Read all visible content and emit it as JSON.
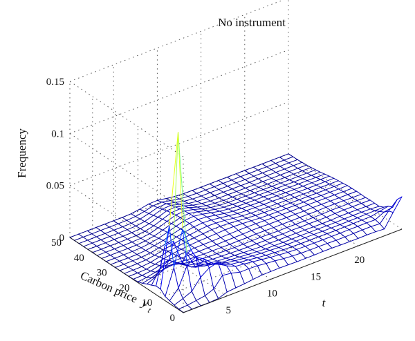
{
  "chart_data": {
    "type": "surface",
    "title": "No instrument",
    "zlabel": "Frequency",
    "ylabel": "Carbon price",
    "ylabel_var": "y",
    "ylabel_sub": "t",
    "xlabel": "t",
    "x_ticks": [
      "5",
      "10",
      "15",
      "20"
    ],
    "y_ticks": [
      "0",
      "10",
      "20",
      "30",
      "40",
      "50"
    ],
    "z_ticks": [
      "0",
      "0.05",
      "0.1",
      "0.15"
    ],
    "xlim": [
      0,
      25
    ],
    "ylim": [
      0,
      50
    ],
    "zlim": [
      0,
      0.15
    ],
    "grid": true,
    "colormap": "jet",
    "colormap_stops": [
      "#00008f",
      "#0000ff",
      "#00ffff",
      "#ffff00",
      "#ff0000"
    ],
    "x": [
      0,
      1,
      2,
      3,
      4,
      5,
      6,
      7,
      8,
      9,
      10,
      11,
      12,
      13,
      14,
      15,
      16,
      17,
      18,
      19,
      20,
      21,
      22,
      23,
      24,
      25
    ],
    "y": [
      0,
      2,
      4,
      6,
      8,
      10,
      12,
      14,
      16,
      18,
      20,
      22,
      24,
      26,
      28,
      30,
      32,
      34,
      36,
      38,
      40,
      42,
      44,
      46,
      48,
      50
    ],
    "z": [
      [
        0.0001,
        0.0002,
        0.0003,
        0.0002,
        0.0008,
        0.0038,
        0.0046,
        0.0053,
        0.0064,
        0.0073,
        0.0075,
        0.0076,
        0.0075,
        0.0072,
        0.0073,
        0.0073,
        0.0076,
        0.0075,
        0.0073,
        0.0072,
        0.0072,
        0.0073,
        0.0072,
        0.0066,
        0.0194,
        0.0312
      ],
      [
        0.0006,
        0.0011,
        0.0024,
        0.0038,
        0.0071,
        0.0169,
        0.0158,
        0.0136,
        0.0137,
        0.0133,
        0.0124,
        0.0116,
        0.0106,
        0.0099,
        0.0095,
        0.0092,
        0.0093,
        0.0091,
        0.009,
        0.0089,
        0.0091,
        0.0092,
        0.0093,
        0.0087,
        0.0177,
        0.0257
      ],
      [
        0.0015,
        0.0046,
        0.0083,
        0.0185,
        0.0244,
        0.0266,
        0.02,
        0.0163,
        0.0154,
        0.0143,
        0.0132,
        0.0121,
        0.0113,
        0.0105,
        0.0101,
        0.0099,
        0.0098,
        0.0097,
        0.0097,
        0.0097,
        0.0098,
        0.0098,
        0.0099,
        0.0097,
        0.0139,
        0.0154
      ],
      [
        0.0029,
        0.0118,
        0.0305,
        0.0354,
        0.0299,
        0.0224,
        0.0181,
        0.0154,
        0.0142,
        0.0132,
        0.012,
        0.0112,
        0.0105,
        0.0101,
        0.0098,
        0.0096,
        0.0097,
        0.0096,
        0.0095,
        0.0094,
        0.0096,
        0.0097,
        0.0098,
        0.0098,
        0.0116,
        0.0134
      ],
      [
        0.004,
        0.0285,
        0.0624,
        0.0385,
        0.0227,
        0.0187,
        0.0159,
        0.0139,
        0.0128,
        0.0117,
        0.0109,
        0.0103,
        0.0099,
        0.0094,
        0.0092,
        0.0091,
        0.0092,
        0.009,
        0.0089,
        0.0088,
        0.0089,
        0.009,
        0.009,
        0.0093,
        0.0094,
        0.0096
      ],
      [
        0.0082,
        0.0658,
        0.1527,
        0.0331,
        0.0164,
        0.0144,
        0.0128,
        0.0115,
        0.0108,
        0.0102,
        0.0095,
        0.0088,
        0.0083,
        0.0083,
        0.0082,
        0.0081,
        0.0083,
        0.0081,
        0.0082,
        0.008,
        0.0081,
        0.0083,
        0.0084,
        0.0083,
        0.0082,
        0.0075
      ],
      [
        0.0083,
        0.0435,
        0.0452,
        0.0208,
        0.0138,
        0.0121,
        0.0108,
        0.0098,
        0.0094,
        0.0089,
        0.0083,
        0.0079,
        0.0076,
        0.0078,
        0.0076,
        0.0075,
        0.0077,
        0.0075,
        0.0074,
        0.0073,
        0.0074,
        0.0078,
        0.0079,
        0.0077,
        0.0076,
        0.0076
      ],
      [
        0.0062,
        0.0195,
        0.0239,
        0.0172,
        0.0123,
        0.0105,
        0.0094,
        0.0087,
        0.0085,
        0.0081,
        0.0076,
        0.0075,
        0.0075,
        0.0074,
        0.0075,
        0.0073,
        0.0075,
        0.0074,
        0.0075,
        0.0074,
        0.0073,
        0.0077,
        0.0079,
        0.0078,
        0.0078,
        0.0077
      ],
      [
        0.0044,
        0.0083,
        0.0125,
        0.0134,
        0.0111,
        0.0095,
        0.0087,
        0.0081,
        0.0079,
        0.0076,
        0.0074,
        0.0074,
        0.0075,
        0.0076,
        0.0075,
        0.0072,
        0.0074,
        0.0072,
        0.0073,
        0.0073,
        0.0073,
        0.0077,
        0.0076,
        0.0076,
        0.0074,
        0.0073
      ],
      [
        0.0022,
        0.0041,
        0.0072,
        0.0096,
        0.0092,
        0.0085,
        0.0081,
        0.0078,
        0.0078,
        0.0076,
        0.0076,
        0.0077,
        0.0077,
        0.0079,
        0.0078,
        0.0076,
        0.0077,
        0.0076,
        0.0077,
        0.0076,
        0.0077,
        0.0079,
        0.0079,
        0.0077,
        0.0075,
        0.0075
      ],
      [
        0.0007,
        0.0018,
        0.0036,
        0.0062,
        0.0074,
        0.0076,
        0.0077,
        0.0077,
        0.0077,
        0.0077,
        0.0079,
        0.008,
        0.0081,
        0.0084,
        0.0084,
        0.0081,
        0.008,
        0.008,
        0.0079,
        0.0078,
        0.0079,
        0.0078,
        0.0077,
        0.0076,
        0.0075,
        0.0075
      ],
      [
        0.0004,
        0.0008,
        0.0018,
        0.0039,
        0.0058,
        0.0069,
        0.0074,
        0.0079,
        0.0081,
        0.0081,
        0.0083,
        0.0086,
        0.0088,
        0.0089,
        0.0087,
        0.0085,
        0.0082,
        0.008,
        0.0079,
        0.0078,
        0.0079,
        0.0077,
        0.0077,
        0.0075,
        0.0074,
        0.0074
      ],
      [
        0.0002,
        0.0003,
        0.0007,
        0.0022,
        0.0043,
        0.006,
        0.007,
        0.0079,
        0.0085,
        0.0088,
        0.0092,
        0.0096,
        0.0096,
        0.0092,
        0.0087,
        0.0081,
        0.0078,
        0.0077,
        0.0076,
        0.0074,
        0.0074,
        0.0073,
        0.0073,
        0.0072,
        0.0071,
        0.0072
      ],
      [
        0.0001,
        0.0001,
        0.0003,
        0.0011,
        0.0031,
        0.0051,
        0.0065,
        0.0077,
        0.0086,
        0.0094,
        0.0101,
        0.0102,
        0.0098,
        0.009,
        0.0082,
        0.0077,
        0.0073,
        0.0072,
        0.007,
        0.0068,
        0.0067,
        0.0067,
        0.0066,
        0.0066,
        0.0066,
        0.0066
      ],
      [
        0.0,
        0.0001,
        0.0002,
        0.0006,
        0.0019,
        0.0038,
        0.0055,
        0.0073,
        0.0086,
        0.0098,
        0.0106,
        0.0104,
        0.0097,
        0.0085,
        0.0076,
        0.0071,
        0.0068,
        0.0066,
        0.0064,
        0.0063,
        0.0062,
        0.0061,
        0.006,
        0.0061,
        0.0061,
        0.0061
      ],
      [
        0.0,
        0.0,
        0.0001,
        0.0003,
        0.0012,
        0.0028,
        0.0047,
        0.0069,
        0.0086,
        0.0102,
        0.0109,
        0.0104,
        0.0093,
        0.0081,
        0.007,
        0.0066,
        0.0063,
        0.0061,
        0.006,
        0.0058,
        0.0057,
        0.0055,
        0.0054,
        0.0054,
        0.0055,
        0.0055
      ],
      [
        0.0,
        0.0,
        0.0,
        0.0001,
        0.0007,
        0.0021,
        0.0039,
        0.0064,
        0.0086,
        0.0106,
        0.0113,
        0.0104,
        0.0089,
        0.0074,
        0.0063,
        0.0058,
        0.0055,
        0.0053,
        0.0052,
        0.0051,
        0.0049,
        0.0048,
        0.0047,
        0.0047,
        0.0047,
        0.0047
      ],
      [
        0.0,
        0.0,
        0.0,
        0.0001,
        0.0004,
        0.0014,
        0.0031,
        0.0057,
        0.0083,
        0.0107,
        0.0114,
        0.0102,
        0.0083,
        0.0066,
        0.0055,
        0.0049,
        0.0046,
        0.0045,
        0.0044,
        0.0042,
        0.0041,
        0.004,
        0.0039,
        0.0039,
        0.0038,
        0.0038
      ],
      [
        0.0,
        0.0,
        0.0,
        0.0,
        0.0002,
        0.0009,
        0.0024,
        0.0049,
        0.0079,
        0.0105,
        0.0112,
        0.0097,
        0.0074,
        0.0055,
        0.0044,
        0.0039,
        0.0036,
        0.0035,
        0.0034,
        0.0033,
        0.0032,
        0.0031,
        0.003,
        0.0029,
        0.0029,
        0.0028
      ],
      [
        0.0,
        0.0,
        0.0,
        0.0,
        0.0001,
        0.0005,
        0.0017,
        0.0041,
        0.0072,
        0.01,
        0.0107,
        0.0089,
        0.0063,
        0.0044,
        0.0034,
        0.0029,
        0.0027,
        0.0026,
        0.0025,
        0.0024,
        0.0023,
        0.0022,
        0.0021,
        0.0021,
        0.0021,
        0.0021
      ],
      [
        0.0,
        0.0,
        0.0,
        0.0,
        0.0,
        0.0003,
        0.0011,
        0.0032,
        0.0063,
        0.0093,
        0.0099,
        0.0078,
        0.0051,
        0.0033,
        0.0024,
        0.002,
        0.0019,
        0.0018,
        0.0017,
        0.0017,
        0.0016,
        0.0016,
        0.0015,
        0.0015,
        0.0015,
        0.0014
      ],
      [
        0.0,
        0.0,
        0.0,
        0.0,
        0.0,
        0.0001,
        0.0007,
        0.0023,
        0.0053,
        0.0082,
        0.0088,
        0.0066,
        0.004,
        0.0024,
        0.0016,
        0.0014,
        0.0013,
        0.0012,
        0.0012,
        0.0011,
        0.0011,
        0.001,
        0.001,
        0.001,
        0.001,
        0.0009
      ],
      [
        0.0,
        0.0,
        0.0,
        0.0,
        0.0,
        0.0001,
        0.0004,
        0.0016,
        0.0042,
        0.007,
        0.0075,
        0.0053,
        0.0029,
        0.0016,
        0.0011,
        0.0009,
        0.0008,
        0.0008,
        0.0007,
        0.0007,
        0.0007,
        0.0007,
        0.0006,
        0.0006,
        0.0006,
        0.0006
      ],
      [
        0.0,
        0.0,
        0.0,
        0.0,
        0.0,
        0.0,
        0.0002,
        0.001,
        0.0031,
        0.0057,
        0.0061,
        0.0041,
        0.0021,
        0.001,
        0.0007,
        0.0006,
        0.0005,
        0.0005,
        0.0005,
        0.0004,
        0.0004,
        0.0004,
        0.0004,
        0.0004,
        0.0004,
        0.0003
      ],
      [
        0.0,
        0.0,
        0.0,
        0.0,
        0.0,
        0.0,
        0.0001,
        0.0006,
        0.0022,
        0.0044,
        0.0048,
        0.003,
        0.0014,
        0.0006,
        0.0004,
        0.0003,
        0.0003,
        0.0003,
        0.0003,
        0.0003,
        0.0003,
        0.0002,
        0.0002,
        0.0002,
        0.0002,
        0.0002
      ],
      [
        0.0,
        0.0,
        0.0,
        0.0,
        0.0,
        0.0,
        0.0,
        0.0003,
        0.0015,
        0.0032,
        0.0035,
        0.0021,
        0.0009,
        0.0004,
        0.0002,
        0.0002,
        0.0002,
        0.0002,
        0.0002,
        0.0002,
        0.0002,
        0.0001,
        0.0001,
        0.0001,
        0.0001,
        0.0001
      ]
    ]
  }
}
